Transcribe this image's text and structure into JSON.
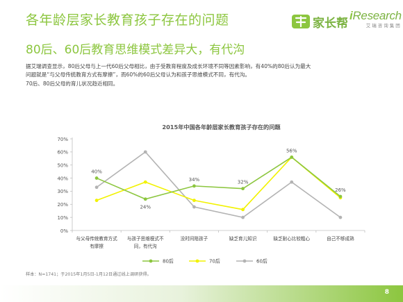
{
  "header": {
    "title": "各年龄层家长教育孩子存在的问题",
    "subtitle": "80后、60后教育思维模式差异大，有代沟"
  },
  "logos": {
    "jiazhangbang_text": "家长帮",
    "iresearch_i": "i",
    "iresearch_text": "Research",
    "iresearch_sub": "艾瑞咨询集团"
  },
  "description": {
    "line1": "据艾瑞调查显示，80后父母与上一代60后父母相比，由于受教育程度及成长环境不同等因素影响，有40%的80后认为最大",
    "line2": "问题就是“与父母传统教育方式有摩擦”，而60%的60后父母认为和孩子思维模式不同，有代沟。",
    "line3": "70后、80后父母的育儿状况趋近相同。"
  },
  "chart_data": {
    "type": "line",
    "title": "2015年中国各年龄层家长教育孩子存在的问题",
    "categories": [
      "与父母传统教育方式有摩擦",
      "与孩子思维模式不同，有代沟",
      "没时间陪孩子",
      "缺乏育儿知识",
      "缺乏耐心比较粗心",
      "自己不够成熟"
    ],
    "category_lines": [
      [
        "与父母传统教育方式",
        "有摩擦"
      ],
      [
        "与孩子思维模式不",
        "同，有代沟"
      ],
      [
        "没时间陪孩子"
      ],
      [
        "缺乏育儿知识"
      ],
      [
        "缺乏耐心比较粗心"
      ],
      [
        "自己不够成熟"
      ]
    ],
    "y_ticks": [
      "0%",
      "10%",
      "20%",
      "30%",
      "40%",
      "50%",
      "60%",
      "70%"
    ],
    "ylim": [
      0,
      70
    ],
    "y_unit": "%",
    "grid": false,
    "legend_position": "bottom",
    "series": [
      {
        "name": "80后",
        "color": "#8cc63f",
        "values": [
          40,
          24,
          34,
          32,
          56,
          26
        ]
      },
      {
        "name": "70后",
        "color": "#f2f200",
        "values": [
          23,
          37,
          23,
          16,
          56,
          25
        ]
      },
      {
        "name": "60后",
        "color": "#b3b3b3",
        "values": [
          33,
          60,
          18,
          10,
          37,
          10
        ]
      }
    ],
    "data_labels": [
      {
        "series": 0,
        "index": 0,
        "text": "40%",
        "pos": "above"
      },
      {
        "series": 0,
        "index": 1,
        "text": "24%",
        "pos": "below"
      },
      {
        "series": 0,
        "index": 2,
        "text": "34%",
        "pos": "above"
      },
      {
        "series": 0,
        "index": 3,
        "text": "32%",
        "pos": "above"
      },
      {
        "series": 0,
        "index": 4,
        "text": "56%",
        "pos": "above"
      },
      {
        "series": 0,
        "index": 5,
        "text": "26%",
        "pos": "above"
      }
    ]
  },
  "footnote": "样本：N=1741；于2015年1月5日-1月12日通过线上调研获得。",
  "page_number": "8"
}
